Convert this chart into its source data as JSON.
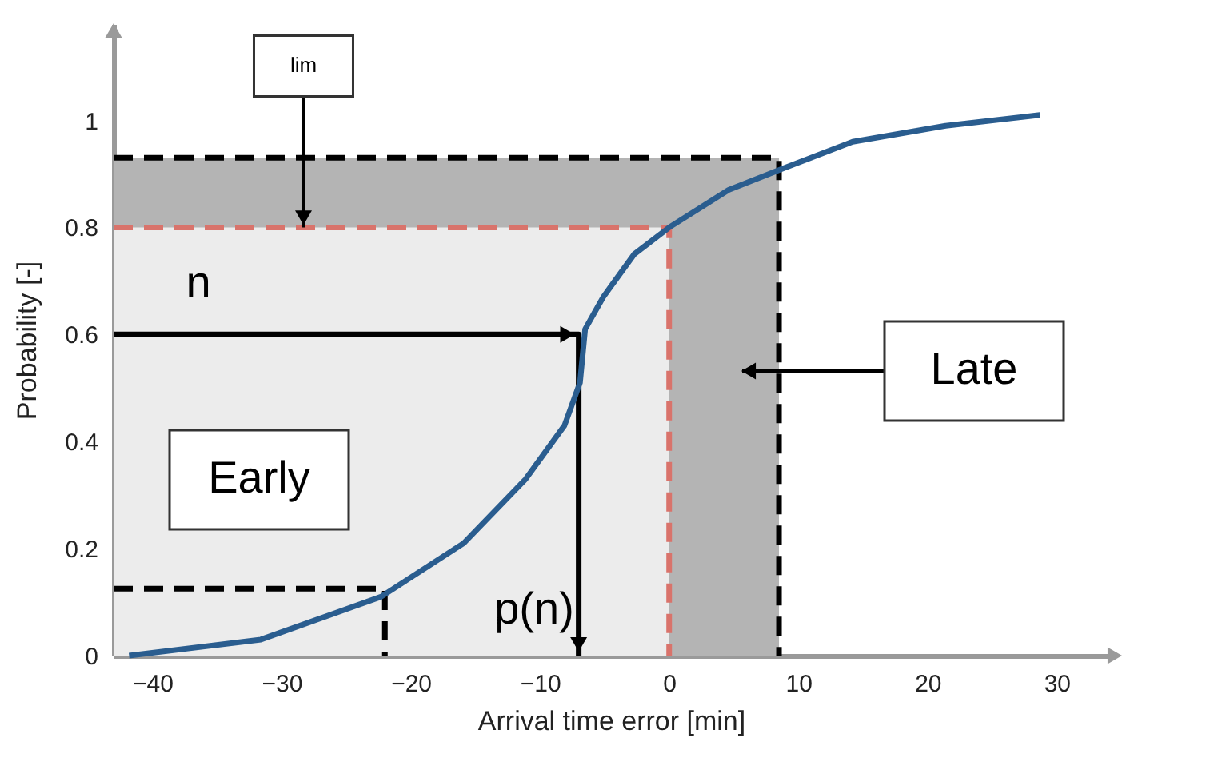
{
  "chart_data": {
    "type": "line",
    "xlabel": "Arrival time error [min]",
    "ylabel": "Probability [-]",
    "xlim": [
      -43,
      34
    ],
    "ylim": [
      0,
      1.18
    ],
    "xticks": [
      -40,
      -30,
      -20,
      -10,
      0,
      10,
      20,
      30
    ],
    "yticks": [
      0,
      0.2,
      0.4,
      0.6,
      0.8,
      1
    ],
    "grid": false,
    "series": [
      {
        "color": "#000000",
        "line_style": "dashed",
        "x": [
          -43,
          8.5,
          8.5
        ],
        "values": [
          0.93,
          0.93,
          0
        ]
      },
      {
        "color": "#d9736b",
        "line_style": "dashed",
        "x": [
          -43,
          0,
          0
        ],
        "values": [
          0.8,
          0.8,
          0
        ]
      },
      {
        "color": "#000000",
        "line_style": "dashed",
        "x": [
          -43,
          -22,
          -22
        ],
        "values": [
          0.125,
          0.125,
          0
        ]
      },
      {
        "color": "#000000",
        "line_style": "solid",
        "x": [
          -43,
          -7,
          -7
        ],
        "values": [
          0.6,
          0.6,
          0
        ]
      },
      {
        "color": "#2a5d8f",
        "line_style": "solid",
        "x": [
          -41.8,
          -31.6,
          -22.3,
          -15.9,
          -11.1,
          -8.1,
          -6.9,
          -6.5,
          -5.1,
          -2.7,
          0,
          4.6,
          8.8,
          14.2,
          21.4,
          28.7
        ],
        "values": [
          0,
          0.03,
          0.11,
          0.21,
          0.33,
          0.43,
          0.51,
          0.61,
          0.67,
          0.75,
          0.8,
          0.87,
          0.91,
          0.96,
          0.99,
          1.01
        ]
      }
    ],
    "bands": [
      {
        "axis": "x",
        "from": -43,
        "to": 0,
        "color": "#ececec"
      },
      {
        "axis": "x",
        "from": 0,
        "to": 8.5,
        "color": "#b4b4b4"
      },
      {
        "axis": "y",
        "from": 0.8,
        "to": 0.93,
        "color": "#b4b4b4"
      }
    ],
    "annotations": [
      "n",
      "p(n)",
      "Early",
      "Late",
      {
        "text": "lim",
        "x": -28.3,
        "y": 0.8
      }
    ]
  }
}
